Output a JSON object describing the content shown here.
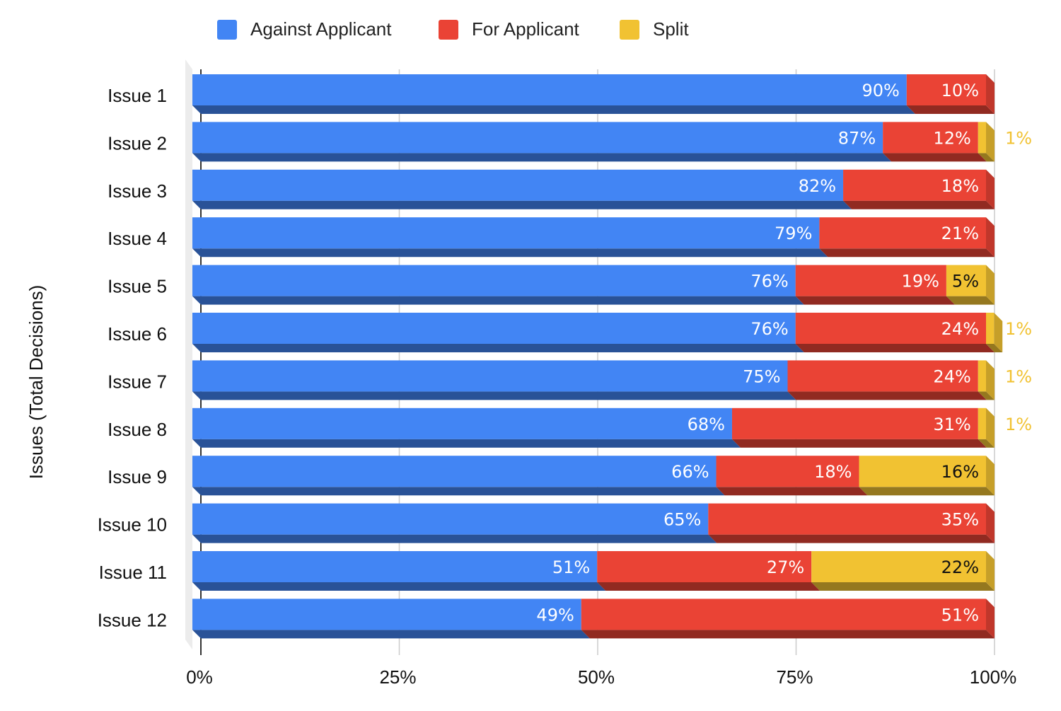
{
  "chart_data": {
    "type": "bar",
    "orientation": "horizontal",
    "stacked": "percent",
    "categories": [
      "Issue 1",
      "Issue 2",
      "Issue 3",
      "Issue 4",
      "Issue 5",
      "Issue 6",
      "Issue 7",
      "Issue 8",
      "Issue 9",
      "Issue 10",
      "Issue 11",
      "Issue 12"
    ],
    "series": [
      {
        "name": "Against Applicant",
        "color": "#4285f4",
        "values": [
          90,
          87,
          82,
          79,
          76,
          76,
          75,
          68,
          66,
          65,
          51,
          49
        ]
      },
      {
        "name": "For Applicant",
        "color": "#ea4335",
        "values": [
          10,
          12,
          18,
          21,
          19,
          24,
          24,
          31,
          18,
          35,
          27,
          51
        ]
      },
      {
        "name": "Split",
        "color": "#f1c232",
        "values": [
          0,
          1,
          0,
          0,
          5,
          1,
          1,
          1,
          16,
          0,
          22,
          0
        ]
      }
    ],
    "data_labels": [
      [
        "90%",
        "87%",
        "82%",
        "79%",
        "76%",
        "76%",
        "75%",
        "68%",
        "66%",
        "65%",
        "51%",
        "49%"
      ],
      [
        "10%",
        "12%",
        "18%",
        "21%",
        "19%",
        "24%",
        "24%",
        "31%",
        "18%",
        "35%",
        "27%",
        "51%"
      ],
      [
        "",
        "1%",
        "",
        "",
        "5%",
        "1%",
        "1%",
        "1%",
        "16%",
        "",
        "22%",
        ""
      ]
    ],
    "title": "",
    "xlabel": "",
    "ylabel": "Issues (Total Decisions)",
    "xlim": [
      0,
      100
    ],
    "xticks": [
      "0%",
      "25%",
      "50%",
      "75%",
      "100%"
    ],
    "grid": "vertical",
    "legend": "top",
    "style": "3d"
  }
}
